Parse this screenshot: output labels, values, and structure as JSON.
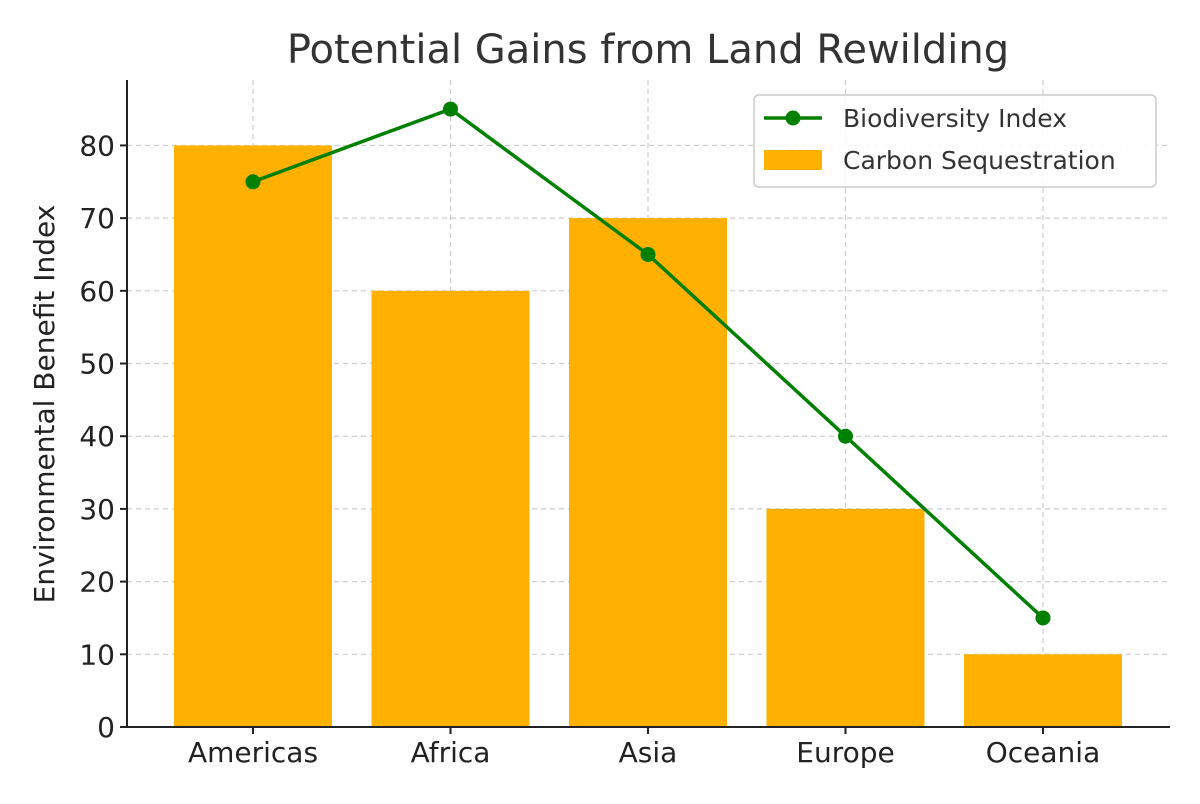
{
  "chart_data": {
    "type": "bar",
    "title": "Potential Gains from Land Rewilding",
    "xlabel": "",
    "ylabel": "Environmental Benefit Index",
    "categories": [
      "Americas",
      "Africa",
      "Asia",
      "Europe",
      "Oceania"
    ],
    "series": [
      {
        "name": "Carbon Sequestration",
        "type": "bar",
        "values": [
          80,
          60,
          70,
          30,
          10
        ],
        "color": "#FFB000"
      },
      {
        "name": "Biodiversity Index",
        "type": "line",
        "values": [
          75,
          85,
          65,
          40,
          15
        ],
        "color": "#008000",
        "marker": "circle"
      }
    ],
    "ylim": [
      0,
      89
    ],
    "yticks": [
      0,
      10,
      20,
      30,
      40,
      50,
      60,
      70,
      80
    ],
    "grid": true,
    "legend": {
      "position": "top-right",
      "entries": [
        "Biodiversity Index",
        "Carbon Sequestration"
      ]
    }
  }
}
